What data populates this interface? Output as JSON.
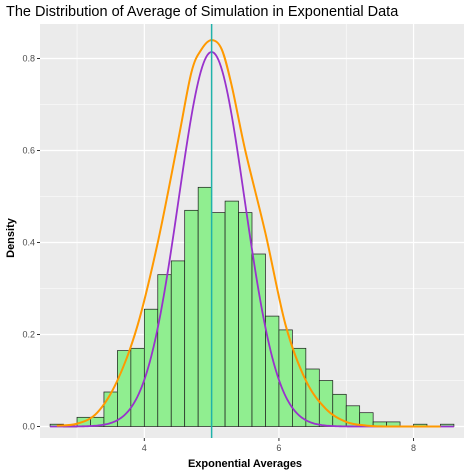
{
  "chart_data": {
    "type": "histogram",
    "title": "The Distribution of Average of Simulation in Exponential Data",
    "xlabel": "Exponential Averages",
    "ylabel": "Density",
    "xlim": [
      2.45,
      8.75
    ],
    "ylim": [
      -0.025,
      0.875
    ],
    "x_ticks": [
      4,
      6,
      8
    ],
    "y_ticks": [
      0.0,
      0.2,
      0.4,
      0.6,
      0.8
    ],
    "y_tick_labels": [
      "0.0",
      "0.2",
      "0.4",
      "0.6",
      "0.8"
    ],
    "grid": true,
    "legend": "none",
    "colors": {
      "panel_background": "#ebebeb",
      "grid": "#ffffff",
      "bar_fill": "#90ee90",
      "bar_stroke": "#1a1a1a",
      "normal_curve": "#9932cc",
      "density_curve": "#ff9900",
      "mean_line": "#20b2aa"
    },
    "bins": {
      "starts": [
        2.6,
        2.8,
        3.0,
        3.2,
        3.4,
        3.6,
        3.8,
        4.0,
        4.2,
        4.4,
        4.6,
        4.8,
        5.0,
        5.2,
        5.4,
        5.6,
        5.8,
        6.0,
        6.2,
        6.4,
        6.6,
        6.8,
        7.0,
        7.2,
        7.4,
        7.6,
        7.8,
        8.0,
        8.2,
        8.4
      ],
      "width": 0.2,
      "density": [
        0.005,
        0.0,
        0.02,
        0.02,
        0.075,
        0.165,
        0.17,
        0.255,
        0.33,
        0.36,
        0.47,
        0.52,
        0.465,
        0.49,
        0.465,
        0.375,
        0.24,
        0.21,
        0.17,
        0.125,
        0.1,
        0.07,
        0.045,
        0.03,
        0.01,
        0.01,
        0.0,
        0.005,
        0.0,
        0.005
      ]
    },
    "normal_curve": {
      "mean": 5.0,
      "sd": 0.49
    },
    "density_curve": {
      "x": [
        2.7,
        3.0,
        3.3,
        3.6,
        3.9,
        4.2,
        4.5,
        4.7,
        4.85,
        5.0,
        5.15,
        5.3,
        5.5,
        5.8,
        6.1,
        6.4,
        6.7,
        7.0,
        7.3,
        7.6,
        8.0,
        8.4
      ],
      "y": [
        0.002,
        0.006,
        0.03,
        0.1,
        0.22,
        0.4,
        0.62,
        0.77,
        0.82,
        0.84,
        0.82,
        0.74,
        0.6,
        0.42,
        0.22,
        0.1,
        0.038,
        0.01,
        0.002,
        0.0,
        0.0,
        0.0
      ]
    },
    "mean_line": {
      "x": 5.0
    }
  }
}
